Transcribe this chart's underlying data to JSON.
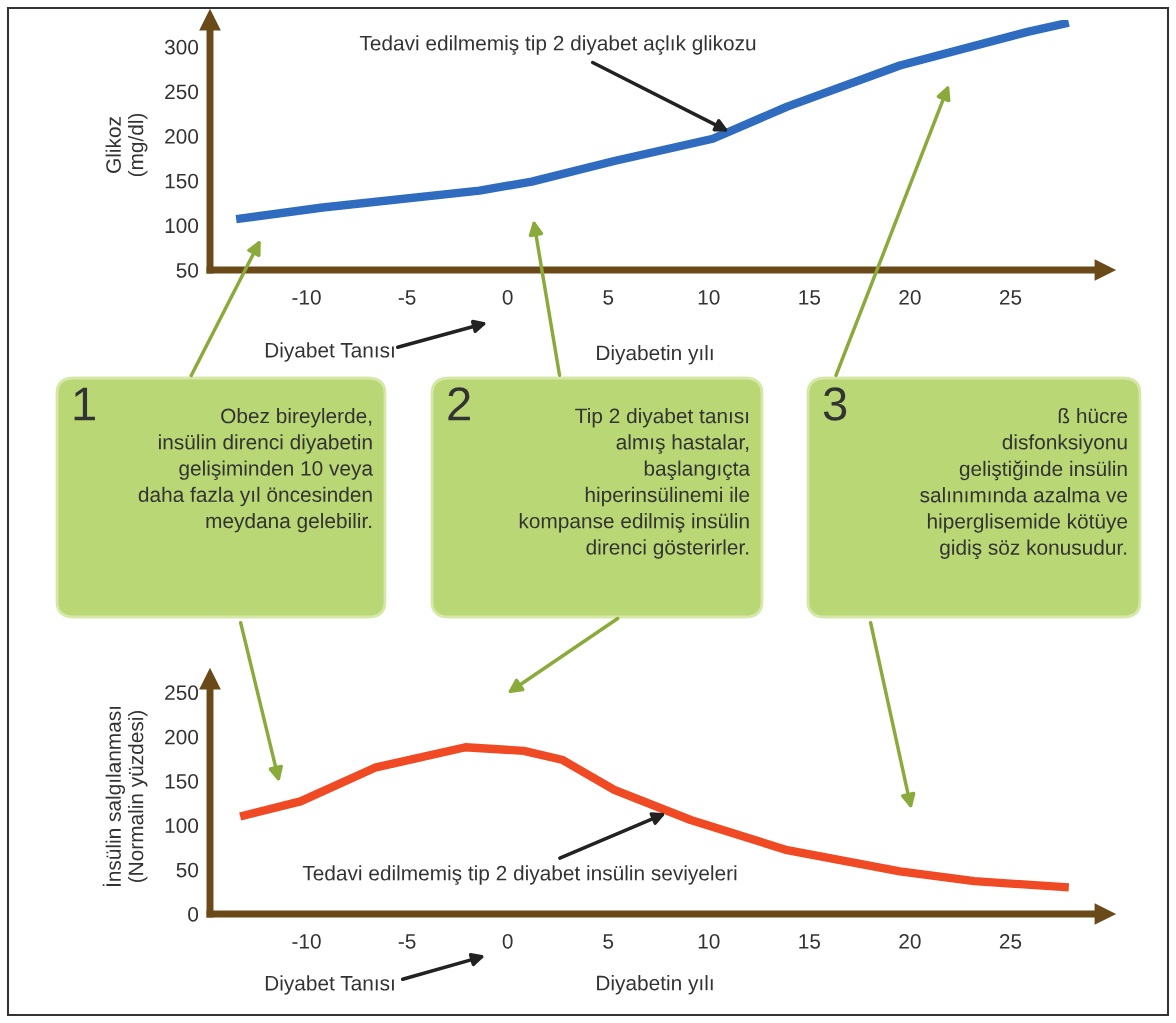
{
  "chart_data": [
    {
      "type": "line",
      "xlabel": "Diyabetin yılı",
      "ylabel": "Glikoz\n(mg/dl)",
      "x": [
        -13.5,
        -9.2,
        -1.4,
        1.2,
        5.3,
        10.2,
        13.9,
        19.5,
        25.9,
        27.9
      ],
      "series": [
        {
          "color": "#2f6cc0",
          "values": [
            107,
            120,
            139,
            149,
            172,
            197,
            233,
            279,
            317,
            327
          ]
        }
      ],
      "xlim": [
        -14.8,
        29.7
      ],
      "ylim": [
        50,
        330
      ],
      "xticks": [
        -10,
        -5,
        0,
        5,
        10,
        15,
        20,
        25
      ],
      "yticks": [
        50,
        100,
        150,
        200,
        250,
        300
      ],
      "annotations": [
        {
          "text": "Tedavi edilmemiş tip 2 diyabet açlık glikozu",
          "x": 11,
          "y": 205
        },
        "Diyabet Tanısı"
      ]
    },
    {
      "type": "other",
      "annotations": [
        "1",
        "Obez bireylerde,\ninsülin direnci diyabetin\ngelişiminden 10 veya\ndaha fazla yıl öncesinden\nmeydana gelebilir.",
        "2",
        "Tip 2 diyabet tanısı\nalmış hastalar,\nbaşlangıçta\nhiperinsülinemi ile\nkompanse edilmiş insülin\ndirenci gösterirler.",
        "3",
        "ß hücre\ndisfonksiyonu\ngeliştiğinde insülin\nsalınımında azalma ve\nhiperglisemide kötüye\ngidiş söz konusudur."
      ]
    },
    {
      "type": "line",
      "xlabel": "Diyabetin yılı",
      "ylabel": "İnsülin salgılanması\n(Normalin yüzdesi)",
      "x": [
        -13.3,
        -10.3,
        -6.6,
        -2.1,
        0.8,
        2.7,
        5.3,
        9.1,
        13.9,
        19.5,
        23.2,
        27.9
      ],
      "series": [
        {
          "color": "#f04a25",
          "values": [
            110,
            127,
            165,
            188,
            184,
            174,
            140,
            106,
            72,
            48,
            37,
            30
          ]
        }
      ],
      "xlim": [
        -14.8,
        29.7
      ],
      "ylim": [
        0,
        265
      ],
      "xticks": [
        -10,
        -5,
        0,
        5,
        10,
        15,
        20,
        25
      ],
      "yticks": [
        0,
        50,
        100,
        150,
        200,
        250
      ],
      "annotations": [
        {
          "text": "Tedavi edilmemiş tip 2 diyabet insülin seviyeleri",
          "x": 8,
          "y": 115
        },
        "Diyabet Tanısı"
      ]
    }
  ]
}
